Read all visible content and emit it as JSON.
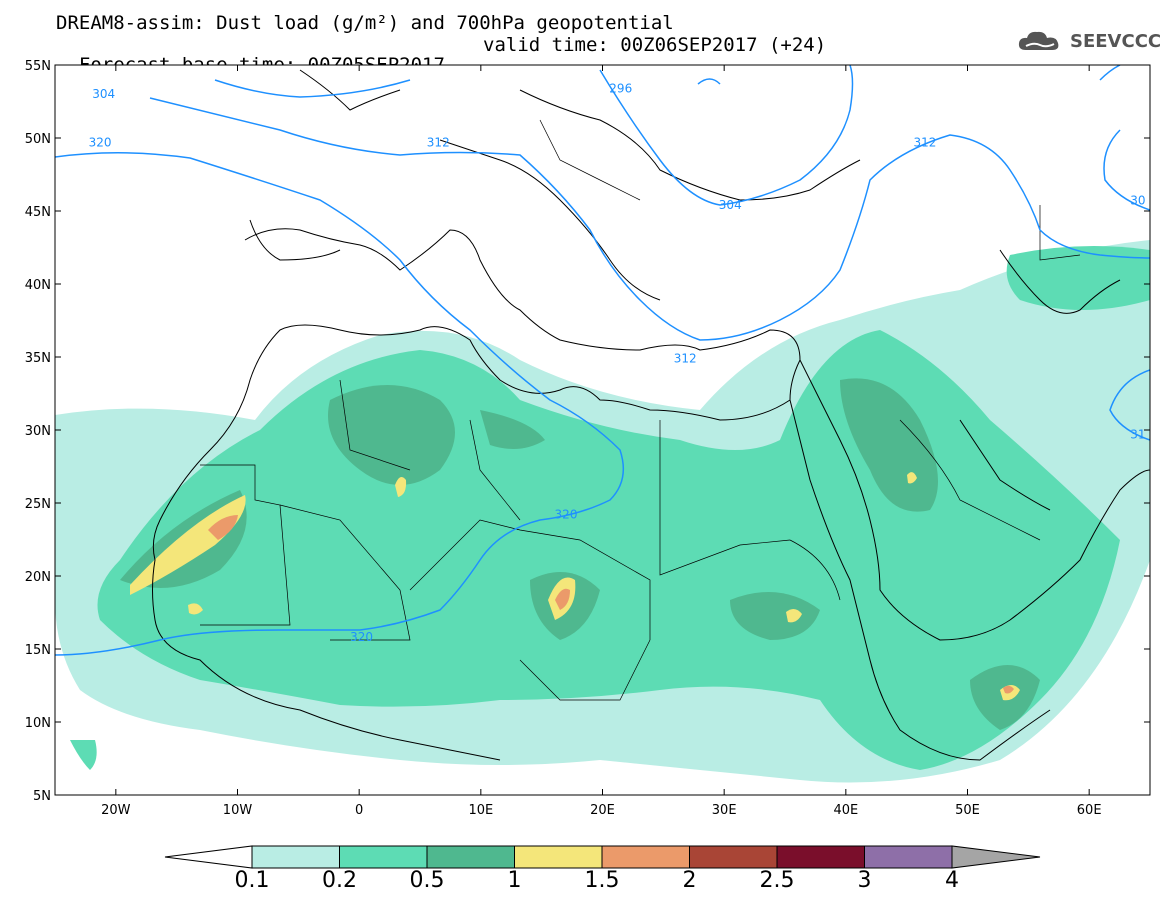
{
  "header": {
    "title_line1": "DREAM8-assim: Dust load (g/m²) and 700hPa geopotential",
    "base_time": "Forecast base time: 00Z05SEP2017",
    "valid_time": "valid time: 00Z06SEP2017 (+24)"
  },
  "logo": {
    "text": "SEEVCCC",
    "icon": "cloud-logo-icon"
  },
  "map": {
    "lon_range": [
      -25,
      65
    ],
    "lat_range": [
      5,
      55
    ],
    "lon_ticks": [
      {
        "v": -20,
        "label": "20W"
      },
      {
        "v": -10,
        "label": "10W"
      },
      {
        "v": 0,
        "label": "0"
      },
      {
        "v": 10,
        "label": "10E"
      },
      {
        "v": 20,
        "label": "20E"
      },
      {
        "v": 30,
        "label": "30E"
      },
      {
        "v": 40,
        "label": "40E"
      },
      {
        "v": 50,
        "label": "50E"
      },
      {
        "v": 60,
        "label": "60E"
      }
    ],
    "lat_ticks": [
      {
        "v": 55,
        "label": "55N"
      },
      {
        "v": 50,
        "label": "50N"
      },
      {
        "v": 45,
        "label": "45N"
      },
      {
        "v": 40,
        "label": "40N"
      },
      {
        "v": 35,
        "label": "35N"
      },
      {
        "v": 30,
        "label": "30N"
      },
      {
        "v": 25,
        "label": "25N"
      },
      {
        "v": 20,
        "label": "20N"
      },
      {
        "v": 15,
        "label": "15N"
      },
      {
        "v": 10,
        "label": "10N"
      },
      {
        "v": 5,
        "label": "5N"
      }
    ],
    "contour_labels": [
      {
        "text": "304",
        "lon": -21.0,
        "lat": 52.8
      },
      {
        "text": "320",
        "lon": -21.3,
        "lat": 49.5
      },
      {
        "text": "312",
        "lon": 6.5,
        "lat": 49.5
      },
      {
        "text": "296",
        "lon": 21.5,
        "lat": 53.2
      },
      {
        "text": "312",
        "lon": 46.5,
        "lat": 49.5
      },
      {
        "text": "304",
        "lon": 30.5,
        "lat": 45.2
      },
      {
        "text": "312",
        "lon": 26.8,
        "lat": 34.7
      },
      {
        "text": "320",
        "lon": 17.0,
        "lat": 24.0
      },
      {
        "text": "320",
        "lon": 0.2,
        "lat": 15.6
      },
      {
        "text": "30",
        "lon": 64.0,
        "lat": 45.5
      },
      {
        "text": "31",
        "lon": 64.0,
        "lat": 29.5
      }
    ]
  },
  "colorbar": {
    "labels": [
      "0.1",
      "0.2",
      "0.5",
      "1",
      "1.5",
      "2",
      "2.5",
      "3",
      "4"
    ],
    "colors": [
      "#b9ede4",
      "#5ddcb4",
      "#4fb88f",
      "#f4e67a",
      "#eb9a6a",
      "#a94536",
      "#7a0e2b",
      "#8e6fa8"
    ],
    "low_color": "#ffffff",
    "high_color": "#a5a5a5"
  },
  "colors": {
    "contour": "#1e90ff",
    "coast": "#000000"
  }
}
